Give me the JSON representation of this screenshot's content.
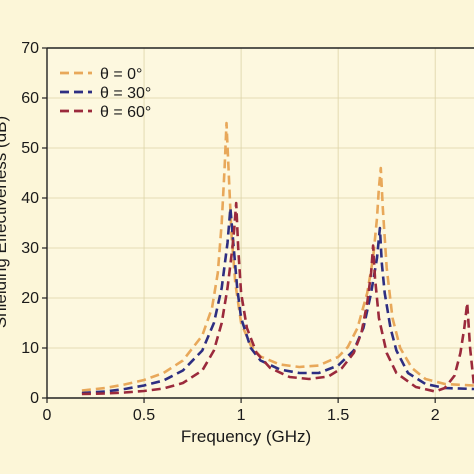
{
  "chart_data": {
    "type": "line",
    "title": "",
    "xlabel": "Frequency (GHz)",
    "ylabel": "Shielding Effectiveness (dB)",
    "xlim": [
      0,
      2.2
    ],
    "ylim": [
      0,
      70
    ],
    "xticks": [
      "0",
      "0.5",
      "1",
      "1.5",
      "2"
    ],
    "yticks": [
      "0",
      "10",
      "20",
      "30",
      "40",
      "50",
      "60",
      "70"
    ],
    "grid": true,
    "legend_position": "top-left",
    "line_style": "dashed",
    "series": [
      {
        "name": "θ = 0°",
        "color": "#e8a85a",
        "points": [
          [
            0.18,
            1.5
          ],
          [
            0.3,
            2.0
          ],
          [
            0.4,
            2.7
          ],
          [
            0.5,
            3.6
          ],
          [
            0.6,
            5.0
          ],
          [
            0.7,
            7.5
          ],
          [
            0.8,
            12.5
          ],
          [
            0.85,
            18
          ],
          [
            0.88,
            25
          ],
          [
            0.9,
            35
          ],
          [
            0.915,
            46
          ],
          [
            0.925,
            55
          ],
          [
            0.935,
            46
          ],
          [
            0.95,
            33
          ],
          [
            0.97,
            23
          ],
          [
            1.0,
            15
          ],
          [
            1.05,
            10.5
          ],
          [
            1.1,
            8.3
          ],
          [
            1.2,
            6.7
          ],
          [
            1.3,
            6.2
          ],
          [
            1.4,
            6.5
          ],
          [
            1.5,
            8.2
          ],
          [
            1.55,
            10.2
          ],
          [
            1.6,
            14
          ],
          [
            1.65,
            21
          ],
          [
            1.68,
            28
          ],
          [
            1.7,
            36
          ],
          [
            1.71,
            42
          ],
          [
            1.72,
            46
          ],
          [
            1.73,
            38
          ],
          [
            1.75,
            26
          ],
          [
            1.78,
            16
          ],
          [
            1.82,
            10
          ],
          [
            1.88,
            6
          ],
          [
            1.95,
            3.8
          ],
          [
            2.05,
            2.8
          ],
          [
            2.2,
            2.5
          ]
        ]
      },
      {
        "name": "θ = 30°",
        "color": "#2d2e82",
        "points": [
          [
            0.18,
            1.0
          ],
          [
            0.3,
            1.3
          ],
          [
            0.4,
            1.8
          ],
          [
            0.5,
            2.5
          ],
          [
            0.6,
            3.5
          ],
          [
            0.7,
            5.5
          ],
          [
            0.8,
            9.5
          ],
          [
            0.86,
            15
          ],
          [
            0.9,
            22
          ],
          [
            0.93,
            31
          ],
          [
            0.945,
            38
          ],
          [
            0.96,
            31
          ],
          [
            0.98,
            22
          ],
          [
            1.0,
            16
          ],
          [
            1.05,
            10
          ],
          [
            1.1,
            7.5
          ],
          [
            1.2,
            5.7
          ],
          [
            1.3,
            5.0
          ],
          [
            1.4,
            5.0
          ],
          [
            1.5,
            6.5
          ],
          [
            1.58,
            9.5
          ],
          [
            1.63,
            14
          ],
          [
            1.67,
            21
          ],
          [
            1.7,
            28
          ],
          [
            1.715,
            34
          ],
          [
            1.725,
            27
          ],
          [
            1.74,
            21
          ],
          [
            1.77,
            14
          ],
          [
            1.8,
            9.5
          ],
          [
            1.86,
            5
          ],
          [
            1.95,
            2.8
          ],
          [
            2.05,
            2.0
          ],
          [
            2.2,
            1.8
          ]
        ]
      },
      {
        "name": "θ = 60°",
        "color": "#9b2a3c",
        "points": [
          [
            0.18,
            0.8
          ],
          [
            0.3,
            0.9
          ],
          [
            0.4,
            1.1
          ],
          [
            0.5,
            1.4
          ],
          [
            0.6,
            1.9
          ],
          [
            0.7,
            3.0
          ],
          [
            0.8,
            5.5
          ],
          [
            0.86,
            9.5
          ],
          [
            0.9,
            15
          ],
          [
            0.93,
            22
          ],
          [
            0.955,
            30
          ],
          [
            0.965,
            34
          ],
          [
            0.975,
            39
          ],
          [
            0.985,
            30
          ],
          [
            1.0,
            21
          ],
          [
            1.03,
            14
          ],
          [
            1.08,
            9
          ],
          [
            1.15,
            6
          ],
          [
            1.25,
            4.2
          ],
          [
            1.35,
            3.8
          ],
          [
            1.45,
            4.3
          ],
          [
            1.52,
            6
          ],
          [
            1.58,
            9
          ],
          [
            1.62,
            13
          ],
          [
            1.65,
            19
          ],
          [
            1.67,
            25
          ],
          [
            1.68,
            30.5
          ],
          [
            1.69,
            24
          ],
          [
            1.71,
            16
          ],
          [
            1.75,
            9
          ],
          [
            1.8,
            5
          ],
          [
            1.9,
            2.2
          ],
          [
            2.0,
            1.3
          ],
          [
            2.05,
            2.0
          ],
          [
            2.1,
            4.5
          ],
          [
            2.13,
            9
          ],
          [
            2.15,
            14
          ],
          [
            2.165,
            19
          ],
          [
            2.18,
            10
          ],
          [
            2.2,
            2.5
          ]
        ]
      }
    ]
  }
}
